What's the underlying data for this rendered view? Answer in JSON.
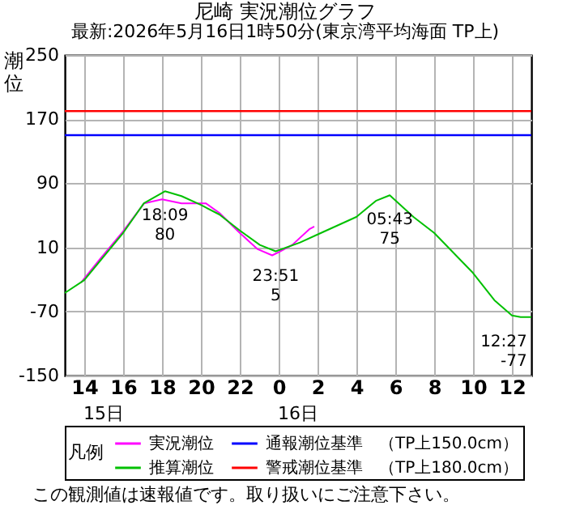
{
  "chart_data": {
    "type": "line",
    "title": "尼崎 実況潮位グラフ",
    "subtitle": "最新:2026年5月16日1時50分(東京湾平均海面 TP上)",
    "ylabel": "潮位",
    "legend_title": "凡例",
    "xlim": [
      "2026-05-15T13:00",
      "2026-05-16T13:00"
    ],
    "xticks": [
      {
        "value": "2026-05-15T14:00",
        "label": "14"
      },
      {
        "value": "2026-05-15T16:00",
        "label": "16"
      },
      {
        "value": "2026-05-15T18:00",
        "label": "18"
      },
      {
        "value": "2026-05-15T20:00",
        "label": "20"
      },
      {
        "value": "2026-05-15T22:00",
        "label": "22"
      },
      {
        "value": "2026-05-16T00:00",
        "label": "0"
      },
      {
        "value": "2026-05-16T02:00",
        "label": "2"
      },
      {
        "value": "2026-05-16T04:00",
        "label": "4"
      },
      {
        "value": "2026-05-16T06:00",
        "label": "6"
      },
      {
        "value": "2026-05-16T08:00",
        "label": "8"
      },
      {
        "value": "2026-05-16T10:00",
        "label": "10"
      },
      {
        "value": "2026-05-16T12:00",
        "label": "12"
      }
    ],
    "ylim": [
      -150,
      250
    ],
    "yticks": [
      -150,
      -70,
      10,
      90,
      170,
      250
    ],
    "grid": true,
    "legend": "bottom",
    "marker": "none",
    "line_style": "solid",
    "series": [
      {
        "name": "実況潮位",
        "color": "#ff00ff",
        "x": [
          "2026-05-15T13:50",
          "2026-05-15T14:48",
          "2026-05-15T16:00",
          "2026-05-15T17:05",
          "2026-05-15T18:00",
          "2026-05-15T19:00",
          "2026-05-15T20:15",
          "2026-05-15T20:57",
          "2026-05-15T22:00",
          "2026-05-15T22:54",
          "2026-05-15T23:40",
          "2026-05-16T00:00",
          "2026-05-16T00:42",
          "2026-05-16T01:36",
          "2026-05-16T01:50"
        ],
        "values": [
          -34,
          -5,
          30,
          65,
          70,
          65,
          65,
          53,
          28,
          8,
          0,
          4,
          13,
          33,
          36
        ]
      },
      {
        "name": "推算潮位",
        "color": "#00c000",
        "x": [
          "2026-05-15T13:00",
          "2026-05-15T14:00",
          "2026-05-15T16:00",
          "2026-05-15T17:04",
          "2026-05-15T18:09",
          "2026-05-15T19:00",
          "2026-05-15T20:00",
          "2026-05-15T20:57",
          "2026-05-15T22:00",
          "2026-05-15T23:02",
          "2026-05-15T23:51",
          "2026-05-16T01:06",
          "2026-05-16T02:00",
          "2026-05-16T04:00",
          "2026-05-16T05:00",
          "2026-05-16T05:43",
          "2026-05-16T06:56",
          "2026-05-16T08:00",
          "2026-05-16T10:00",
          "2026-05-16T11:06",
          "2026-05-16T12:00",
          "2026-05-16T12:27",
          "2026-05-16T13:00"
        ],
        "values": [
          -47,
          -31,
          28,
          65,
          80,
          74,
          63,
          51,
          31,
          13,
          5,
          16,
          26,
          48,
          68,
          75,
          48,
          28,
          -22,
          -56,
          -75,
          -77,
          -77
        ]
      }
    ],
    "ref_lines": [
      {
        "axis": "y",
        "value": 150,
        "label": "通報潮位基準　（TP上150.0cm）",
        "color": "#0000ff"
      },
      {
        "axis": "y",
        "value": 180,
        "label": "警戒潮位基準　（TP上180.0cm）",
        "color": "#ff0000"
      }
    ],
    "annotations": [
      {
        "text": "18:09\n80",
        "x": "2026-05-15T18:09",
        "y": 80
      },
      {
        "text": "23:51\n5",
        "x": "2026-05-15T23:51",
        "y": 5
      },
      {
        "text": "05:43\n75",
        "x": "2026-05-16T05:43",
        "y": 75
      },
      {
        "text": "12:27\n-77",
        "x": "2026-05-16T12:27",
        "y": -77
      },
      "15日",
      "16日",
      "この観測値は速報値です。取り扱いにご注意下さい。"
    ]
  }
}
